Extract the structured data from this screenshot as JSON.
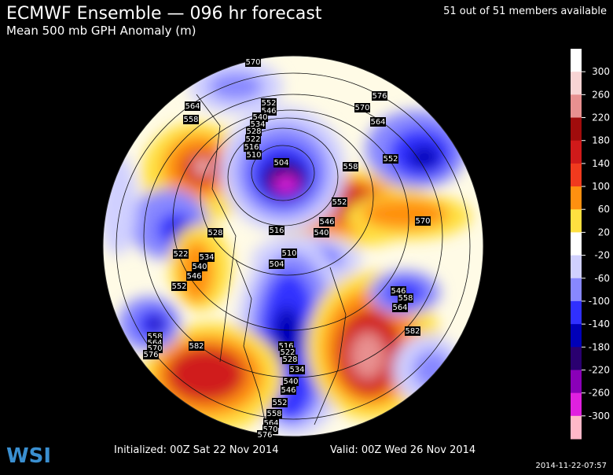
{
  "header": {
    "title": "ECMWF Ensemble — 096 hr forecast",
    "subtitle": "Mean 500 mb GPH Anomaly (m)",
    "members": "51 out of 51 members available"
  },
  "footer": {
    "initialized": "Initialized: 00Z Sat 22 Nov 2014",
    "valid": "Valid: 00Z Wed 26 Nov 2014",
    "timestamp": "2014-11-22-07:57",
    "logo": "WSI"
  },
  "colorbar": {
    "labels": [
      300,
      260,
      220,
      180,
      140,
      100,
      60,
      20,
      -20,
      -60,
      -100,
      -140,
      -180,
      -220,
      -260,
      -300
    ],
    "colors": [
      "#ffffff",
      "#f8d4d4",
      "#e89090",
      "#a00c0c",
      "#d01a1a",
      "#f03a1e",
      "#ff9010",
      "#ffe040",
      "#ffffff",
      "#d0d0ff",
      "#8888ff",
      "#3030ff",
      "#0000b8",
      "#2a0070",
      "#8a00b8",
      "#e020e0",
      "#ffb8c8"
    ]
  },
  "contour_labels": [
    "570",
    "564",
    "558",
    "552",
    "546",
    "540",
    "534",
    "528",
    "522",
    "516",
    "510",
    "504",
    "576",
    "570",
    "564",
    "552",
    "558",
    "552",
    "546",
    "540",
    "516",
    "570",
    "528",
    "522",
    "534",
    "540",
    "546",
    "552",
    "510",
    "504",
    "546",
    "558",
    "564",
    "582",
    "558",
    "564",
    "570",
    "576",
    "582",
    "516",
    "522",
    "528",
    "534",
    "540",
    "546",
    "552",
    "558",
    "564",
    "570",
    "576"
  ]
}
